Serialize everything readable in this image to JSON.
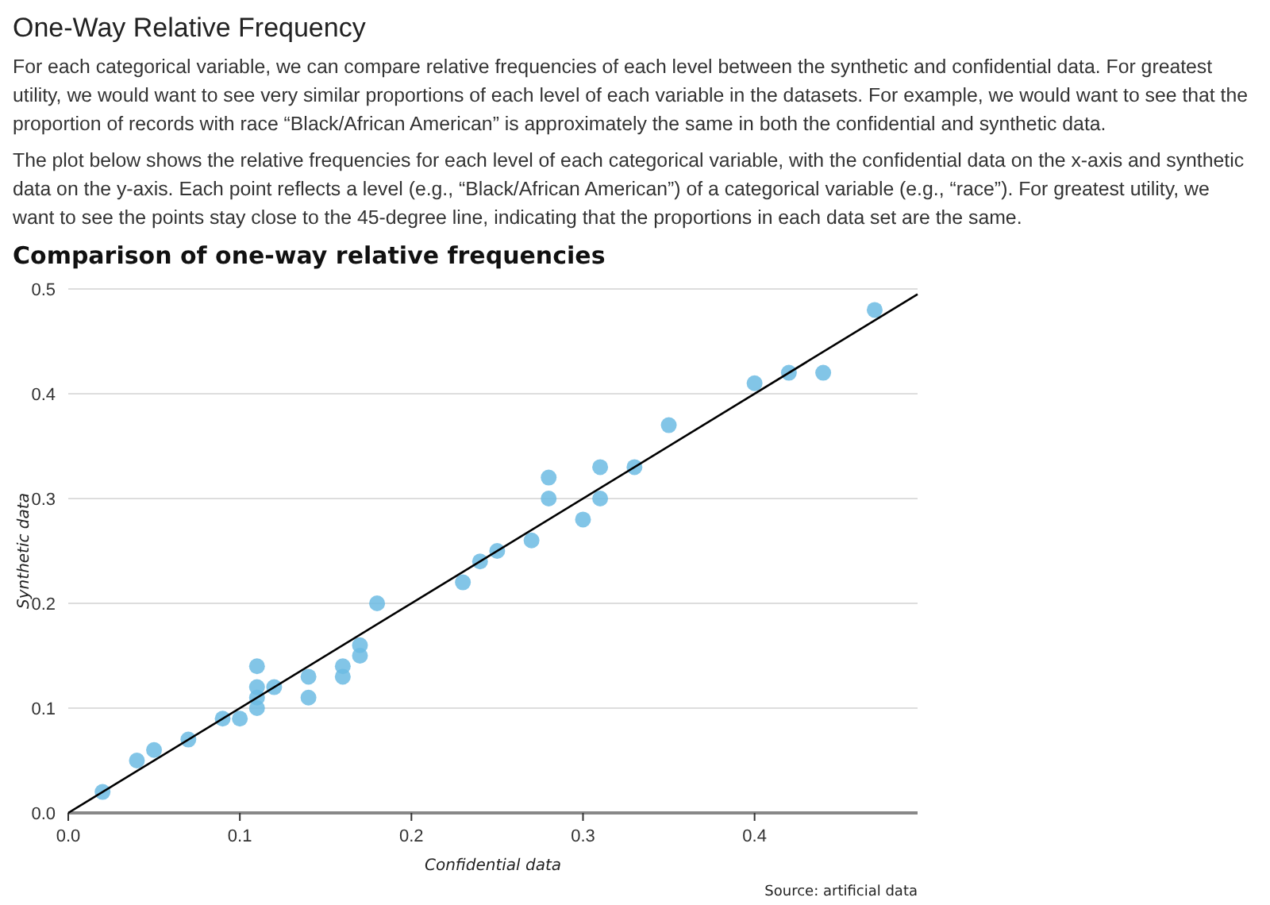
{
  "chart_data": {
    "type": "scatter",
    "title": "Comparison of one-way relative frequencies",
    "annotations": [
      "One-Way Relative Frequency",
      "For each categorical variable, we can compare relative frequencies of each level between the synthetic and confidential data. For greatest utility, we would want to see very similar proportions of each level of each variable in the datasets. For example, we would want to see that the proportion of records with race “Black/African American” is approximately the same in both the confidential and synthetic data.",
      "The plot below shows the relative frequencies for each level of each categorical variable, with the confidential data on the x-axis and synthetic data on the y-axis. Each point reflects a level (e.g., “Black/African American”) of a categorical variable (e.g., “race”). For greatest utility, we want to see the points stay close to the 45-degree line, indicating that the proportions in each data set are the same.",
      "Source: artificial data"
    ],
    "xlabel": "Confidential data",
    "ylabel": "Synthetic data",
    "xlim": [
      0,
      0.495
    ],
    "ylim": [
      0,
      0.5
    ],
    "xticks": [
      {
        "value": 0,
        "label": "0.0"
      },
      0.1,
      0.2,
      0.3,
      0.4
    ],
    "yticks": [
      {
        "value": 0,
        "label": "0.0"
      },
      0.1,
      0.2,
      0.3,
      0.4,
      0.5
    ],
    "grid": "y",
    "marker": "circle",
    "series": [
      {
        "color": "#6cbbe3",
        "x": [
          0.02,
          0.04,
          0.05,
          0.07,
          0.09,
          0.1,
          0.11,
          0.11,
          0.11,
          0.11,
          0.12,
          0.14,
          0.14,
          0.16,
          0.16,
          0.17,
          0.17,
          0.18,
          0.23,
          0.24,
          0.25,
          0.27,
          0.28,
          0.28,
          0.3,
          0.31,
          0.31,
          0.33,
          0.35,
          0.4,
          0.42,
          0.44,
          0.47
        ],
        "values": [
          0.02,
          0.05,
          0.06,
          0.07,
          0.09,
          0.09,
          0.14,
          0.12,
          0.11,
          0.1,
          0.12,
          0.13,
          0.11,
          0.14,
          0.13,
          0.16,
          0.15,
          0.2,
          0.22,
          0.24,
          0.25,
          0.26,
          0.32,
          0.3,
          0.28,
          0.33,
          0.3,
          0.33,
          0.37,
          0.41,
          0.42,
          0.42,
          0.48
        ]
      },
      {
        "type": "line",
        "color": "#000000",
        "marker": "none",
        "line_style": "solid",
        "x": [
          0,
          0.495
        ],
        "values": [
          0,
          0.495
        ]
      }
    ]
  }
}
